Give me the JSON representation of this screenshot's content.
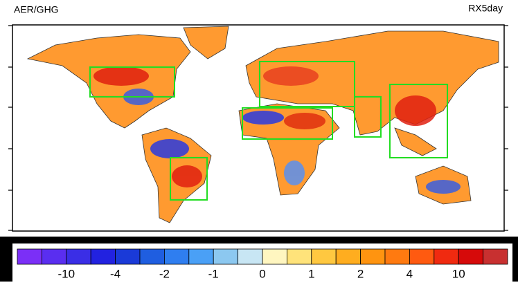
{
  "header": {
    "left": "AER/GHG",
    "right": "RX5day"
  },
  "colorbar": {
    "colors": [
      "#7b2ff7",
      "#5a2ef0",
      "#3a2ee6",
      "#2222e0",
      "#1a3ad8",
      "#1f5ee0",
      "#2f7ef0",
      "#4aa0f6",
      "#8cc8f0",
      "#c8e6f4",
      "#fff6c0",
      "#ffe37a",
      "#ffc840",
      "#ffad1f",
      "#ff9410",
      "#ff7a10",
      "#ff5a10",
      "#f02a10",
      "#d60a0a",
      "#c83030"
    ],
    "labels": [
      "-10",
      "-4",
      "-2",
      "-1",
      "0",
      "1",
      "2",
      "4",
      "10"
    ]
  }
}
